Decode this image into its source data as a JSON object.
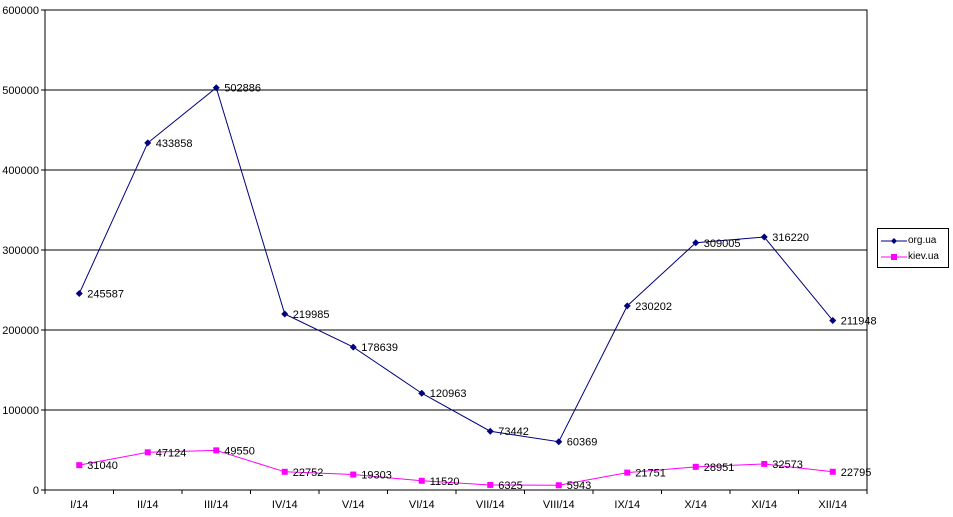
{
  "chart_data": {
    "type": "line",
    "categories": [
      "I/14",
      "II/14",
      "III/14",
      "IV/14",
      "V/14",
      "VI/14",
      "VII/14",
      "VIII/14",
      "IX/14",
      "X/14",
      "XI/14",
      "XII/14"
    ],
    "series": [
      {
        "name": "org.ua",
        "color": "#000080",
        "marker": "diamond",
        "values": [
          245587,
          433858,
          502886,
          219985,
          178639,
          120963,
          73442,
          60369,
          230202,
          309005,
          316220,
          211948
        ]
      },
      {
        "name": "kiev.ua",
        "color": "#FF00FF",
        "marker": "square",
        "values": [
          31040,
          47124,
          49550,
          22752,
          19303,
          11520,
          6325,
          5943,
          21751,
          28951,
          32573,
          22795
        ]
      }
    ],
    "ylim": [
      0,
      600000
    ],
    "yticks": [
      0,
      100000,
      200000,
      300000,
      400000,
      500000,
      600000
    ],
    "grid": true,
    "legend_position": "right"
  }
}
